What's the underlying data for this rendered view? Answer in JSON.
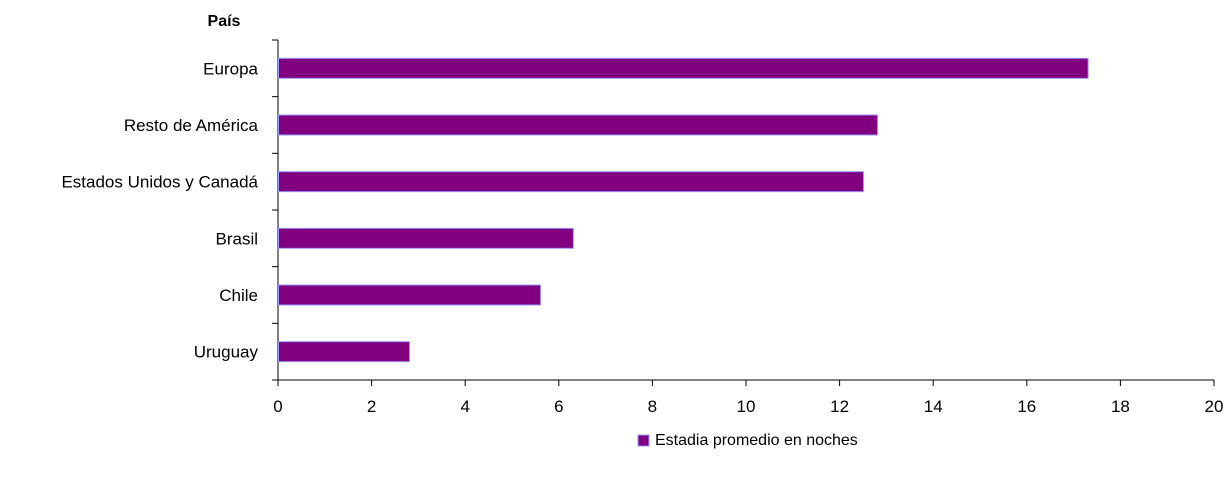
{
  "chart_data": {
    "type": "bar",
    "orientation": "horizontal",
    "title": "",
    "ylabel": "País",
    "xlabel": "",
    "categories": [
      "Europa",
      "Resto de América",
      "Estados Unidos y Canadá",
      "Brasil",
      "Chile",
      "Uruguay"
    ],
    "series": [
      {
        "name": "Estadia promedio en noches",
        "values": [
          17.3,
          12.8,
          12.5,
          6.3,
          5.6,
          2.8
        ],
        "color": "#800080",
        "edge_color": "#9999ff"
      }
    ],
    "xlim": [
      0,
      20
    ],
    "xticks": [
      0,
      2,
      4,
      6,
      8,
      10,
      12,
      14,
      16,
      18,
      20
    ],
    "grid": false,
    "legend": "bottom-center"
  }
}
